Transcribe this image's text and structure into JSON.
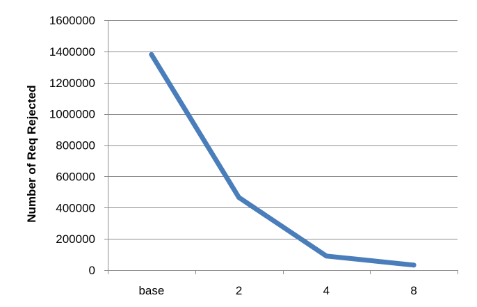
{
  "chart_data": {
    "type": "line",
    "categories": [
      "base",
      "2",
      "4",
      "8"
    ],
    "series": [
      {
        "values": [
          1380000,
          465000,
          90000,
          32000
        ]
      }
    ],
    "xlabel": "",
    "ylabel": "Number of Req Rejected",
    "ylim": [
      0,
      1600000
    ],
    "yticks": [
      "0",
      "200000",
      "400000",
      "600000",
      "800000",
      "1000000",
      "1200000",
      "1400000",
      "1600000"
    ],
    "grid": true,
    "legend": "none",
    "colors": {
      "line": "#4a7ebb",
      "grid": "#8c8c8c",
      "axis": "#8c8c8c",
      "text": "#000000"
    }
  }
}
